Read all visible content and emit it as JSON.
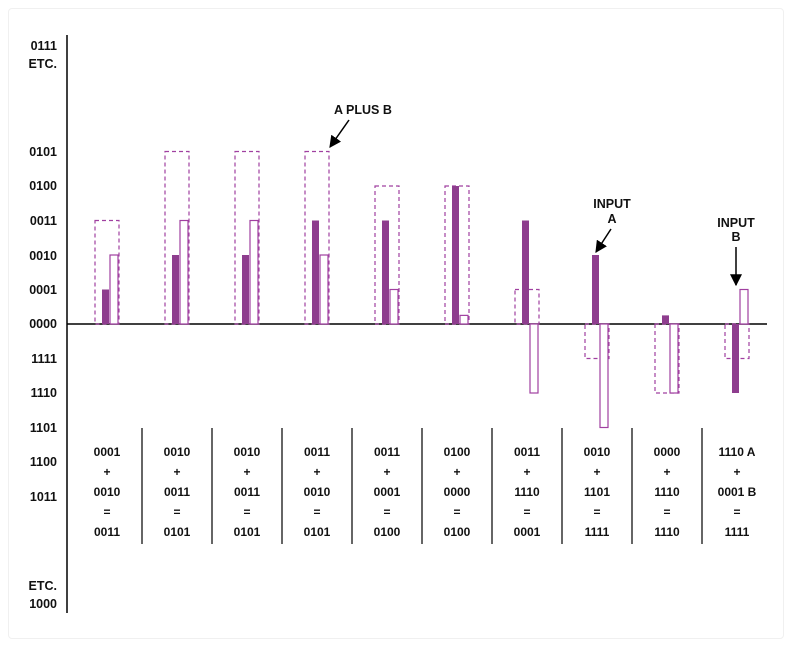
{
  "axis_labels": {
    "top": [
      "0111",
      "ETC.",
      "0101",
      "0100",
      "0011",
      "0010",
      "0001",
      "0000",
      "1111",
      "1110",
      "1101",
      "1100",
      "1011"
    ],
    "bottom": [
      "ETC.",
      "1000"
    ]
  },
  "annotations": {
    "sum": "A PLUS B",
    "input_a": [
      "INPUT",
      "A"
    ],
    "input_b": [
      "INPUT",
      "B"
    ]
  },
  "colors": {
    "filled": "#8e3d8e",
    "outline": "#a040a0"
  },
  "chart_data": {
    "type": "bar",
    "title": "",
    "y_levels": [
      "1000",
      "1011",
      "1100",
      "1101",
      "1110",
      "1111",
      "0000",
      "0001",
      "0010",
      "0011",
      "0100",
      "0101",
      "0111"
    ],
    "columns": [
      {
        "a": 1,
        "b": 2,
        "sum": 3,
        "eq": [
          "0001",
          "+",
          "0010",
          "=",
          "0011"
        ]
      },
      {
        "a": 2,
        "b": 3,
        "sum": 5,
        "eq": [
          "0010",
          "+",
          "0011",
          "=",
          "0101"
        ]
      },
      {
        "a": 2,
        "b": 3,
        "sum": 5,
        "eq": [
          "0010",
          "+",
          "0011",
          "=",
          "0101"
        ]
      },
      {
        "a": 3,
        "b": 2,
        "sum": 5,
        "eq": [
          "0011",
          "+",
          "0010",
          "=",
          "0101"
        ]
      },
      {
        "a": 3,
        "b": 1,
        "sum": 4,
        "eq": [
          "0011",
          "+",
          "0001",
          "=",
          "0100"
        ]
      },
      {
        "a": 4,
        "b": 0,
        "sum": 4,
        "eq": [
          "0100",
          "+",
          "0000",
          "=",
          "0100"
        ]
      },
      {
        "a": 3,
        "b": -2,
        "sum": 1,
        "eq": [
          "0011",
          "+",
          "1110",
          "=",
          "0001"
        ]
      },
      {
        "a": 2,
        "b": -3,
        "sum": -1,
        "eq": [
          "0010",
          "+",
          "1101",
          "=",
          "1111"
        ]
      },
      {
        "a": 0,
        "b": -2,
        "sum": -2,
        "eq": [
          "0000",
          "+",
          "1110",
          "=",
          "1110"
        ]
      },
      {
        "a": -2,
        "b": 1,
        "sum": -1,
        "eq": [
          "1110 A",
          "+",
          "0001 B",
          "=",
          "1111"
        ]
      }
    ]
  }
}
